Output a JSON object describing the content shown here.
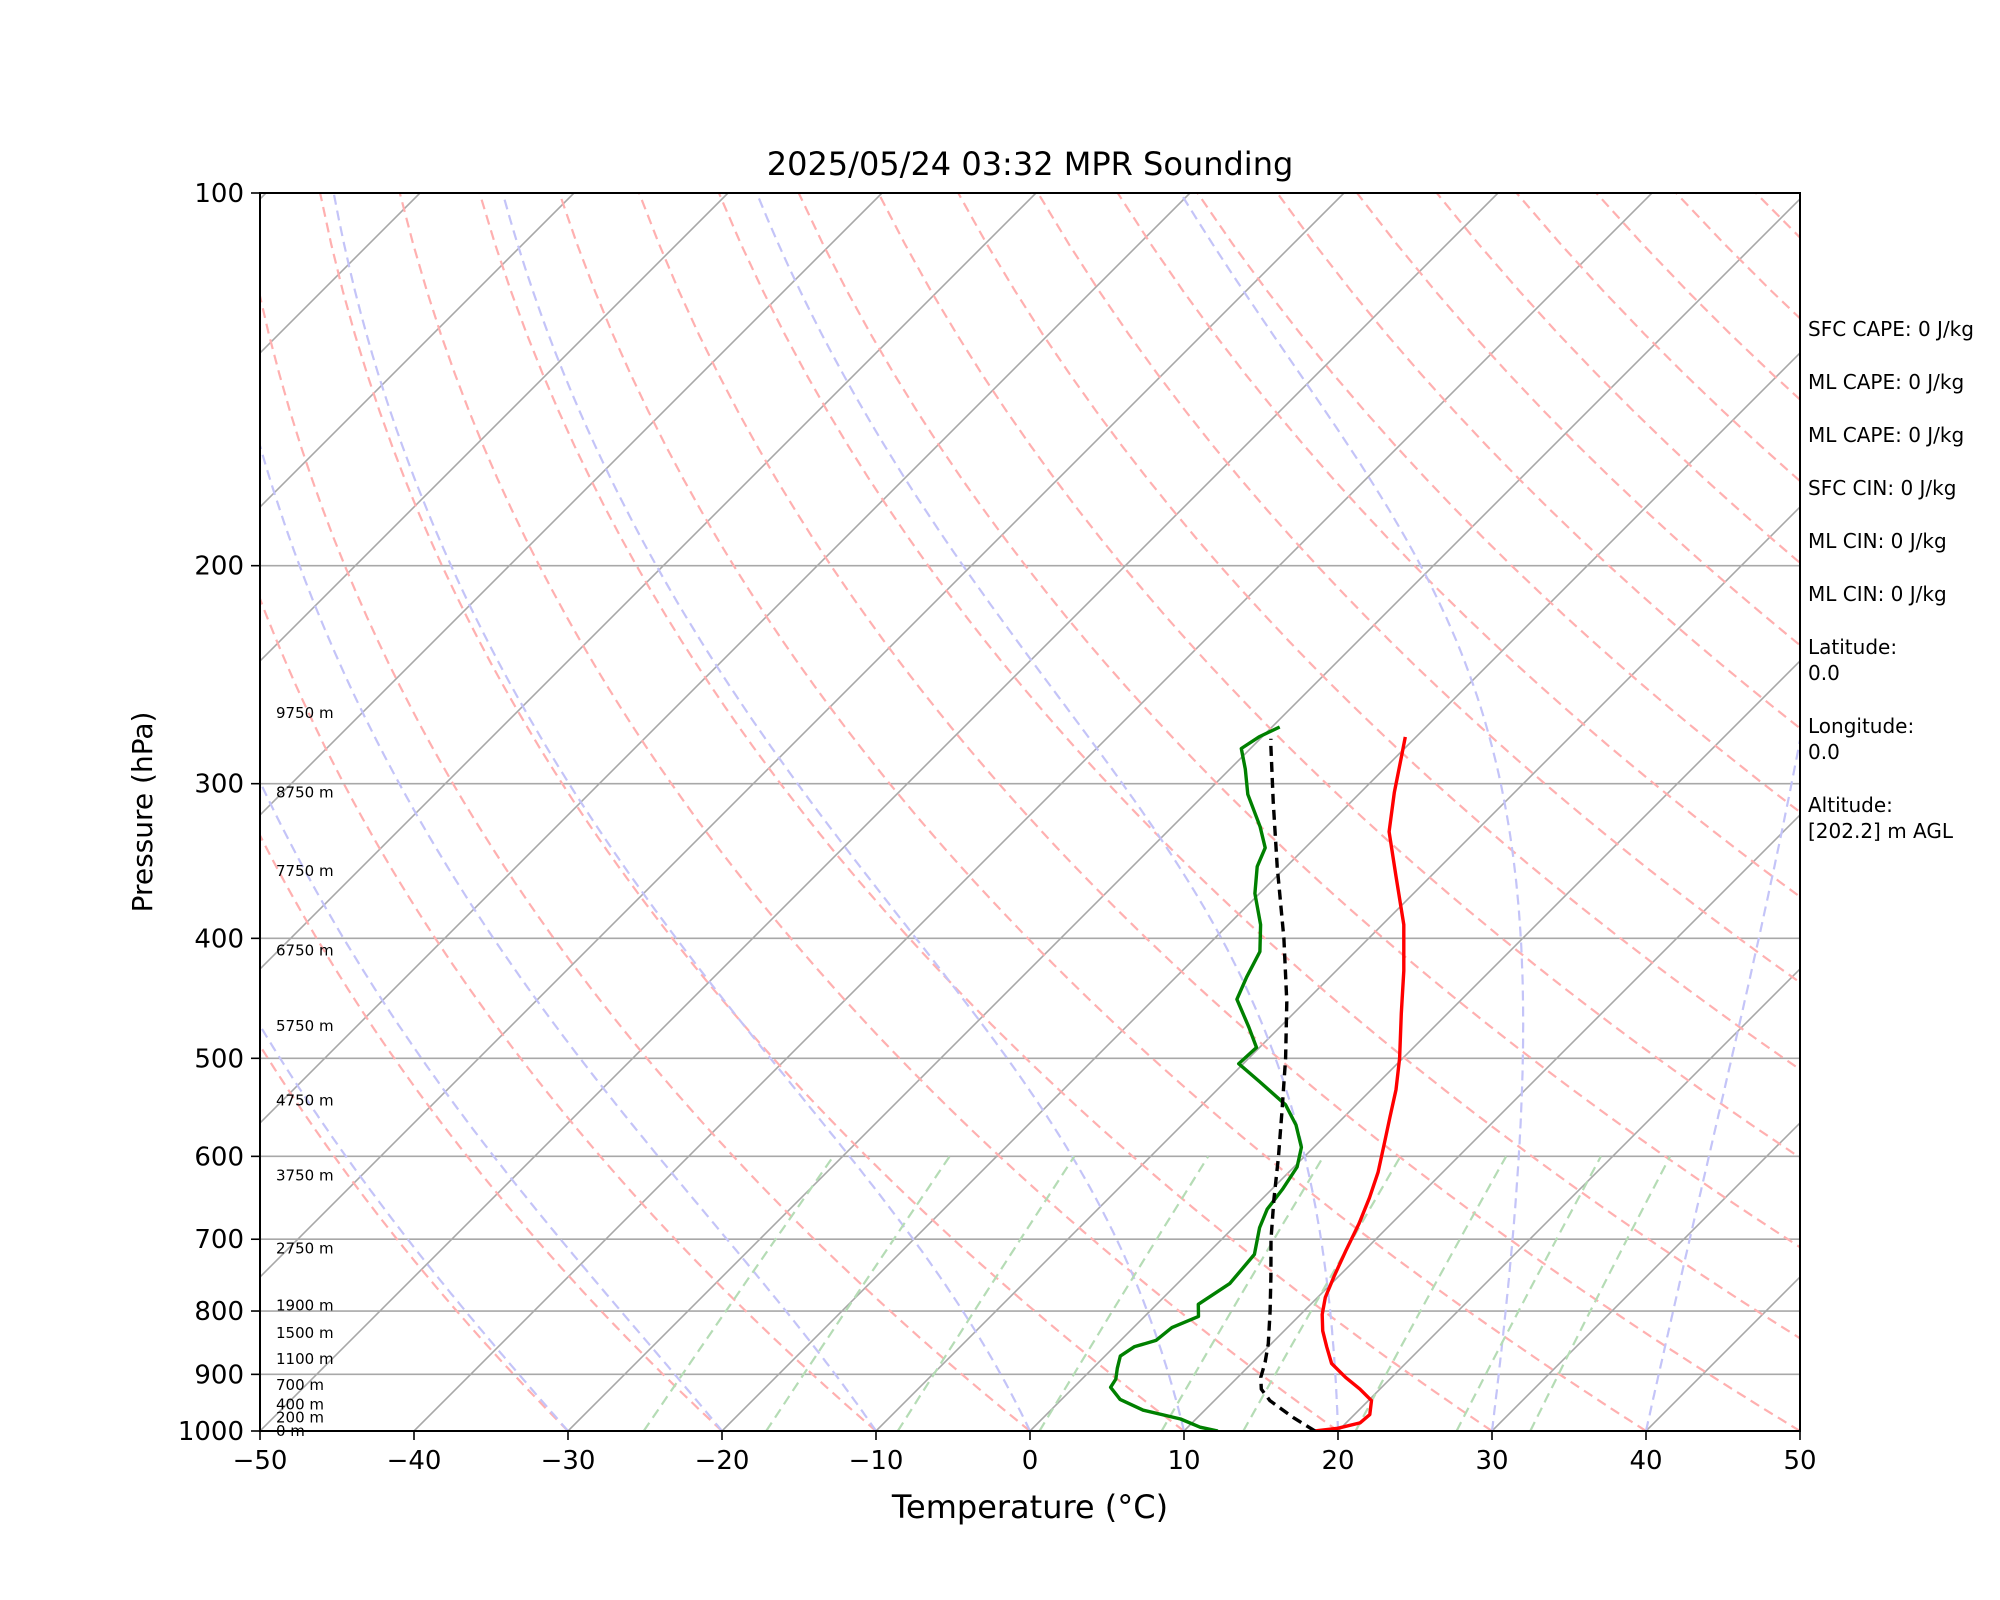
{
  "chart_data": {
    "type": "line",
    "title": "2025/05/24 03:32 MPR Sounding",
    "xlabel": "Temperature (°C)",
    "ylabel": "Pressure (hPa)",
    "xlim": [
      -50,
      50
    ],
    "ylim": [
      1000,
      100
    ],
    "y_scale": "log",
    "x_ticks": [
      "−50",
      "−40",
      "−30",
      "−20",
      "−10",
      "0",
      "10",
      "20",
      "30",
      "40",
      "50"
    ],
    "y_ticks": [
      100,
      200,
      300,
      400,
      500,
      600,
      700,
      800,
      900,
      1000
    ],
    "grid": "horizontal isobars",
    "series": [
      {
        "color": "#ff0000",
        "points": [
          [
            18.5,
            1000
          ],
          [
            19.8,
            995
          ],
          [
            20.9,
            985
          ],
          [
            21.0,
            970
          ],
          [
            20.2,
            945
          ],
          [
            18.7,
            925
          ],
          [
            17.0,
            905
          ],
          [
            15.2,
            882
          ],
          [
            13.8,
            855
          ],
          [
            12.5,
            830
          ],
          [
            11.4,
            805
          ],
          [
            10.5,
            780
          ],
          [
            9.7,
            750
          ],
          [
            8.8,
            715
          ],
          [
            7.9,
            680
          ],
          [
            6.9,
            648
          ],
          [
            5.8,
            618
          ],
          [
            4.3,
            585
          ],
          [
            3.0,
            558
          ],
          [
            1.6,
            530
          ],
          [
            -0.2,
            500
          ],
          [
            -3.0,
            460
          ],
          [
            -5.6,
            425
          ],
          [
            -8.6,
            390
          ],
          [
            -12.3,
            356
          ],
          [
            -15.6,
            328
          ],
          [
            -17.8,
            305
          ],
          [
            -19.5,
            287
          ],
          [
            -20.7,
            275
          ]
        ]
      },
      {
        "color": "#008000",
        "points": [
          [
            12.2,
            1000
          ],
          [
            10.8,
            993
          ],
          [
            9.0,
            978
          ],
          [
            6.0,
            962
          ],
          [
            3.8,
            943
          ],
          [
            2.4,
            922
          ],
          [
            2.2,
            908
          ],
          [
            1.6,
            890
          ],
          [
            1.0,
            870
          ],
          [
            1.3,
            855
          ],
          [
            2.3,
            845
          ],
          [
            2.5,
            825
          ],
          [
            3.5,
            808
          ],
          [
            2.7,
            790
          ],
          [
            3.4,
            760
          ],
          [
            3.1,
            720
          ],
          [
            1.7,
            685
          ],
          [
            1.0,
            662
          ],
          [
            0.7,
            638
          ],
          [
            0.2,
            612
          ],
          [
            -0.8,
            590
          ],
          [
            -2.6,
            566
          ],
          [
            -4.6,
            545
          ],
          [
            -7.8,
            522
          ],
          [
            -10.3,
            505
          ],
          [
            -10.2,
            490
          ],
          [
            -12.0,
            472
          ],
          [
            -14.6,
            448
          ],
          [
            -15.4,
            430
          ],
          [
            -16.2,
            410
          ],
          [
            -17.9,
            390
          ],
          [
            -20.3,
            368
          ],
          [
            -21.9,
            350
          ],
          [
            -22.6,
            338
          ],
          [
            -24.3,
            325
          ],
          [
            -27.2,
            306
          ],
          [
            -29.0,
            292
          ],
          [
            -30.6,
            281
          ],
          [
            -30.2,
            275
          ],
          [
            -29.5,
            270
          ]
        ]
      },
      {
        "color": "#000000",
        "dashed": true,
        "points": [
          [
            18.5,
            1000
          ],
          [
            16.2,
            975
          ],
          [
            13.6,
            945
          ],
          [
            12.3,
            925
          ],
          [
            11.5,
            905
          ],
          [
            10.8,
            880
          ],
          [
            9.8,
            850
          ],
          [
            7.8,
            800
          ],
          [
            5.6,
            750
          ],
          [
            3.2,
            700
          ],
          [
            0.8,
            650
          ],
          [
            -1.7,
            600
          ],
          [
            -4.5,
            550
          ],
          [
            -7.6,
            500
          ],
          [
            -11.2,
            450
          ],
          [
            -15.5,
            400
          ],
          [
            -20.6,
            350
          ],
          [
            -25.1,
            310
          ],
          [
            -28.8,
            280
          ],
          [
            -29.3,
            276
          ]
        ]
      }
    ],
    "height_labels": [
      {
        "label": "0 m",
        "p": 1000
      },
      {
        "label": "200 m",
        "p": 975
      },
      {
        "label": "400 m",
        "p": 952
      },
      {
        "label": "700 m",
        "p": 918
      },
      {
        "label": "1100 m",
        "p": 875
      },
      {
        "label": "1500 m",
        "p": 833
      },
      {
        "label": "1900 m",
        "p": 792
      },
      {
        "label": "2750 m",
        "p": 712
      },
      {
        "label": "3750 m",
        "p": 622
      },
      {
        "label": "4750 m",
        "p": 541
      },
      {
        "label": "5750 m",
        "p": 471
      },
      {
        "label": "6750 m",
        "p": 409
      },
      {
        "label": "7750 m",
        "p": 353
      },
      {
        "label": "8750 m",
        "p": 305
      },
      {
        "label": "9750 m",
        "p": 263
      }
    ],
    "background_lines": {
      "isotherms_color": "#a8a8a8",
      "dry_adiabats_color": "#ffb0b0",
      "moist_adiabats_color": "#c4c4f8",
      "mixing_ratio_color": "#b5dcb5"
    }
  },
  "side_panel": [
    "SFC CAPE: 0 J/kg",
    "ML CAPE: 0 J/kg",
    "ML CAPE: 0 J/kg",
    "SFC CIN: 0 J/kg",
    "ML CIN: 0 J/kg",
    "ML CIN: 0 J/kg",
    "Latitude:\n0.0",
    "Longitude:\n0.0",
    "Altitude:\n[202.2] m AGL"
  ]
}
